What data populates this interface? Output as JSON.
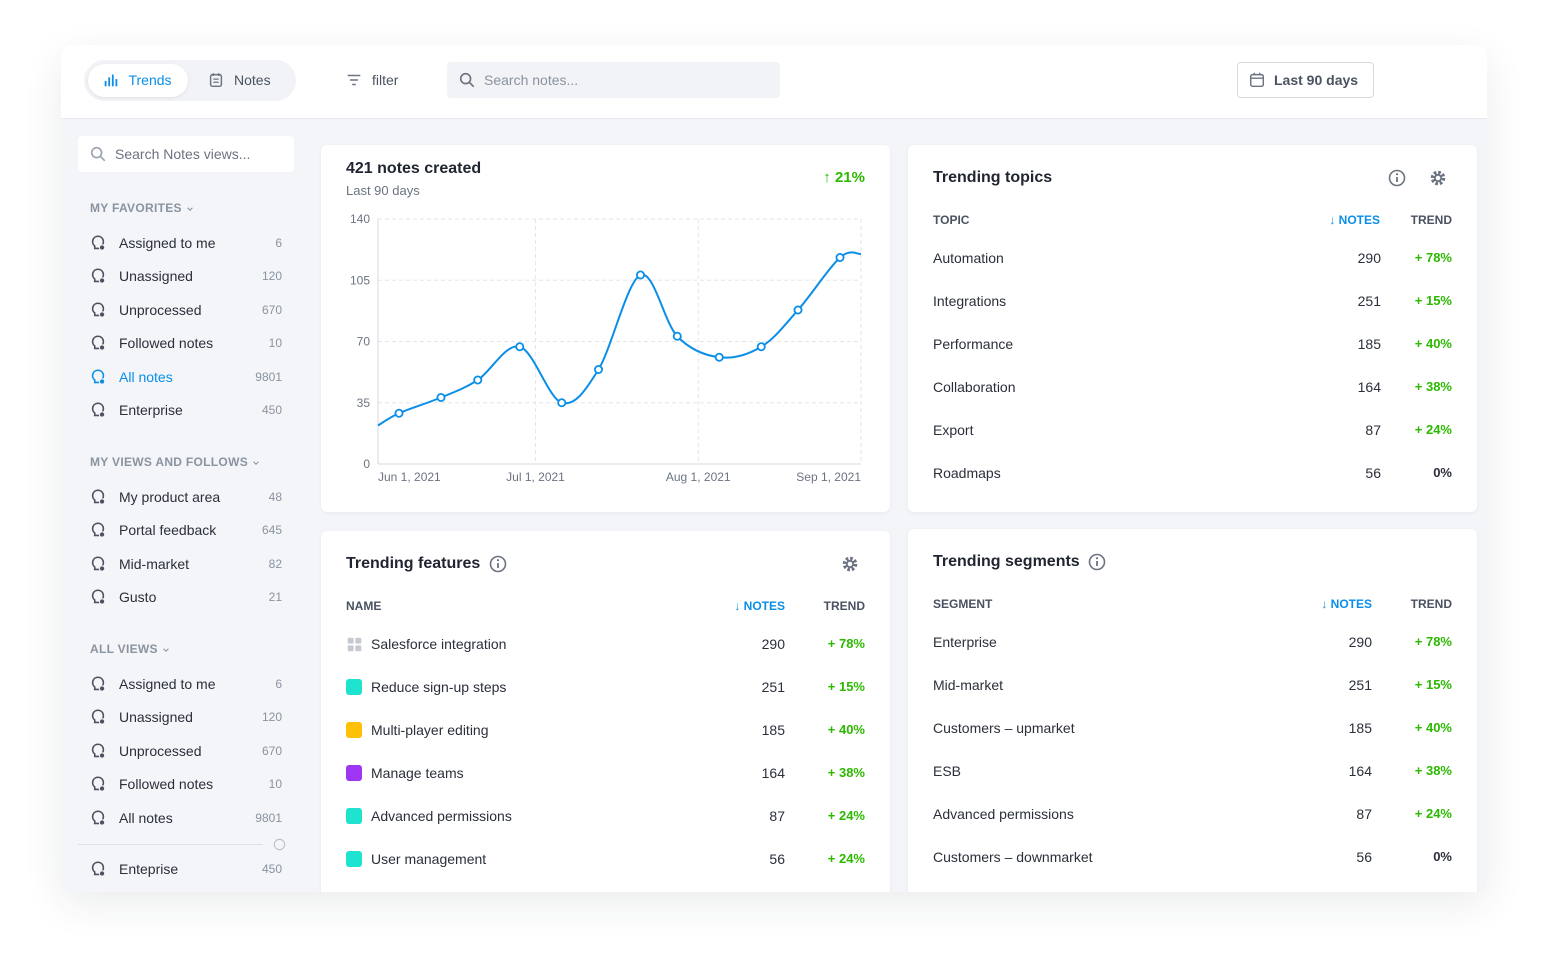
{
  "toolbar": {
    "tabs": [
      "Trends",
      "Notes"
    ],
    "filter": "filter",
    "search": "Search notes...",
    "date_range": "Last 90 days"
  },
  "sidebar": {
    "search": "Search Notes views...",
    "sections": [
      {
        "title": "MY FAVORITES",
        "items": [
          {
            "label": "Assigned to me",
            "count": 6
          },
          {
            "label": "Unassigned",
            "count": 120
          },
          {
            "label": "Unprocessed",
            "count": 670
          },
          {
            "label": "Followed notes",
            "count": 10
          },
          {
            "label": "All notes",
            "count": 9801,
            "active": true
          },
          {
            "label": "Enterprise",
            "count": 450
          }
        ]
      },
      {
        "title": "MY VIEWS AND FOLLOWS",
        "items": [
          {
            "label": "My product area",
            "count": 48
          },
          {
            "label": "Portal feedback",
            "count": 645
          },
          {
            "label": "Mid-market",
            "count": 82
          },
          {
            "label": "Gusto",
            "count": 21
          }
        ]
      },
      {
        "title": "ALL VIEWS",
        "items": [
          {
            "label": "Assigned to me",
            "count": 6
          },
          {
            "label": "Unassigned",
            "count": 120
          },
          {
            "label": "Unprocessed",
            "count": 670
          },
          {
            "label": "Followed notes",
            "count": 10
          },
          {
            "label": "All notes",
            "count": 9801
          }
        ]
      }
    ],
    "footer": {
      "label": "Enteprise",
      "count": 450
    }
  },
  "notes_card": {
    "title": "421 notes created",
    "subtitle": "Last 90 days",
    "change": "↑ 21%"
  },
  "chart_data": {
    "type": "line",
    "x": [
      0,
      4,
      12,
      19,
      27,
      35,
      42,
      50,
      57,
      65,
      73,
      80,
      88,
      92
    ],
    "series": [
      {
        "color": "#0a8ee8",
        "values": [
          22,
          29,
          38,
          48,
          67,
          35,
          54,
          108,
          73,
          61,
          67,
          88,
          118,
          120
        ]
      }
    ],
    "xlim": [
      0,
      92
    ],
    "xticks": [
      {
        "value": 0,
        "label": "Jun 1, 2021"
      },
      {
        "value": 30,
        "label": "Jul 1, 2021"
      },
      {
        "value": 61,
        "label": "Aug 1, 2021"
      },
      {
        "value": 92,
        "label": "Sep 1, 2021"
      }
    ],
    "ylim": [
      0,
      140
    ],
    "yticks": [
      0,
      35,
      70,
      105,
      140
    ],
    "grid": true
  },
  "topics": {
    "title": "Trending topics",
    "columns": [
      "TOPIC",
      "↓ NOTES",
      "TREND"
    ],
    "rows": [
      [
        "Automation",
        290,
        "+ 78%"
      ],
      [
        "Integrations",
        251,
        "+ 15%"
      ],
      [
        "Performance",
        185,
        "+ 40%"
      ],
      [
        "Collaboration",
        164,
        "+ 38%"
      ],
      [
        "Export",
        87,
        "+ 24%"
      ],
      [
        "Roadmaps",
        56,
        "0%"
      ]
    ]
  },
  "features": {
    "title": "Trending features",
    "columns": [
      "NAME",
      "↓ NOTES",
      "TREND"
    ],
    "rows": [
      {
        "name": "Salesforce integration",
        "icon": "grid",
        "notes": 290,
        "trend": "+ 78%"
      },
      {
        "name": "Reduce sign-up steps",
        "color": "#1de3cf",
        "notes": 251,
        "trend": "+ 15%"
      },
      {
        "name": "Multi-player editing",
        "color": "#ffc107",
        "notes": 185,
        "trend": "+ 40%"
      },
      {
        "name": "Manage teams",
        "color": "#a036f5",
        "notes": 164,
        "trend": "+ 38%"
      },
      {
        "name": "Advanced permissions",
        "color": "#1de3cf",
        "notes": 87,
        "trend": "+ 24%"
      },
      {
        "name": "User management",
        "color": "#1de3cf",
        "notes": 56,
        "trend": "+ 24%"
      }
    ]
  },
  "segments": {
    "title": "Trending segments",
    "columns": [
      "SEGMENT",
      "↓ NOTES",
      "TREND"
    ],
    "rows": [
      [
        "Enterprise",
        290,
        "+ 78%"
      ],
      [
        "Mid-market",
        251,
        "+ 15%"
      ],
      [
        "Customers – upmarket",
        185,
        "+ 40%"
      ],
      [
        "ESB",
        164,
        "+ 38%"
      ],
      [
        "Advanced permissions",
        87,
        "+ 24%"
      ],
      [
        "Customers – downmarket",
        56,
        "0%"
      ]
    ]
  }
}
